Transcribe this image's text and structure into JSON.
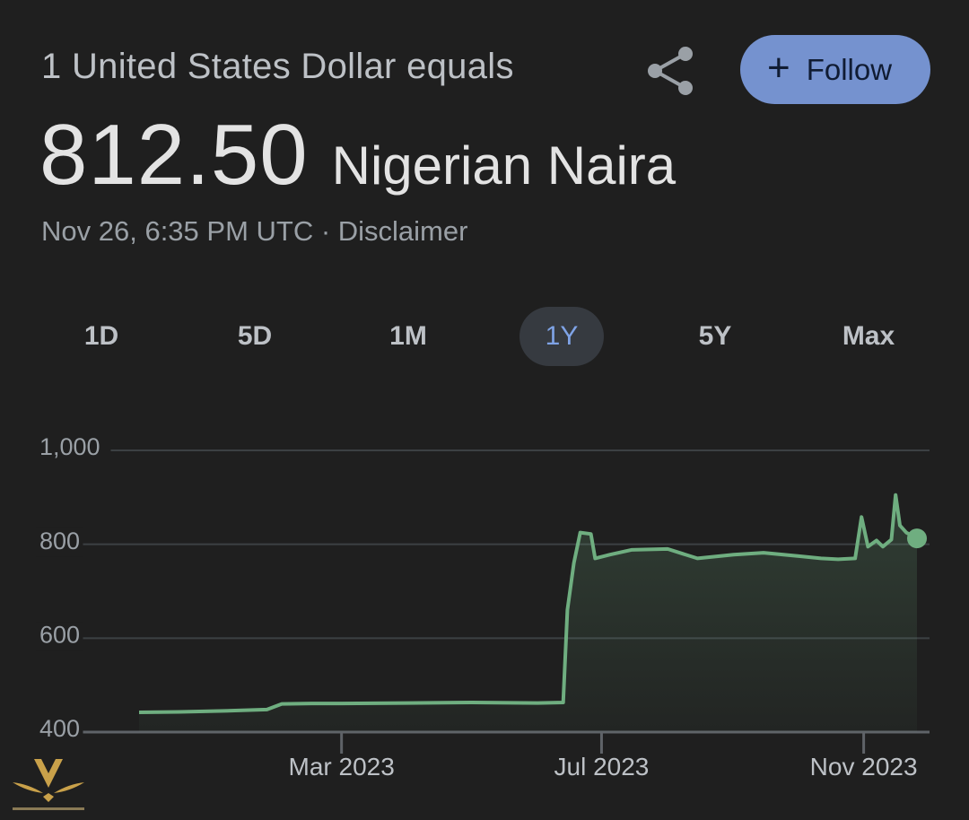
{
  "header": {
    "subtitle": "1 United States Dollar equals",
    "follow_label": "Follow",
    "share_icon": "share-icon",
    "plus_icon": "plus-icon"
  },
  "quote": {
    "value": "812.50",
    "currency": "Nigerian Naira",
    "timestamp": "Nov 26, 6:35 PM UTC · Disclaimer"
  },
  "tabs": [
    {
      "label": "1D",
      "active": false
    },
    {
      "label": "5D",
      "active": false
    },
    {
      "label": "1M",
      "active": false
    },
    {
      "label": "1Y",
      "active": true
    },
    {
      "label": "5Y",
      "active": false
    },
    {
      "label": "Max",
      "active": false
    }
  ],
  "colors": {
    "line": "#6fae80",
    "active_tab": "#7fa3e6",
    "follow_bg": "#7592cf"
  },
  "chart_data": {
    "type": "area",
    "xlabel": "",
    "ylabel": "",
    "ylim": [
      400,
      1000
    ],
    "xlim": [
      "2022-11-26",
      "2023-11-26"
    ],
    "y_ticks": [
      {
        "value": 1000,
        "label": "1,000"
      },
      {
        "value": 800,
        "label": "800"
      },
      {
        "value": 600,
        "label": "600"
      },
      {
        "value": 400,
        "label": "400"
      }
    ],
    "x_ticks": [
      {
        "date": "2023-03-01",
        "label": "Mar 2023"
      },
      {
        "date": "2023-07-01",
        "label": "Jul 2023"
      },
      {
        "date": "2023-11-01",
        "label": "Nov 2023"
      }
    ],
    "grid": true,
    "series": [
      {
        "points": [
          [
            "2022-11-26",
            442
          ],
          [
            "2022-12-15",
            443
          ],
          [
            "2023-01-05",
            445
          ],
          [
            "2023-01-25",
            448
          ],
          [
            "2023-02-01",
            460
          ],
          [
            "2023-02-15",
            461
          ],
          [
            "2023-03-01",
            461
          ],
          [
            "2023-04-01",
            462
          ],
          [
            "2023-05-01",
            463
          ],
          [
            "2023-06-01",
            462
          ],
          [
            "2023-06-13",
            463
          ],
          [
            "2023-06-15",
            660
          ],
          [
            "2023-06-18",
            760
          ],
          [
            "2023-06-21",
            825
          ],
          [
            "2023-06-26",
            822
          ],
          [
            "2023-06-28",
            770
          ],
          [
            "2023-07-05",
            778
          ],
          [
            "2023-07-15",
            788
          ],
          [
            "2023-08-01",
            790
          ],
          [
            "2023-08-15",
            770
          ],
          [
            "2023-09-01",
            778
          ],
          [
            "2023-09-15",
            782
          ],
          [
            "2023-10-01",
            775
          ],
          [
            "2023-10-12",
            770
          ],
          [
            "2023-10-20",
            768
          ],
          [
            "2023-10-28",
            770
          ],
          [
            "2023-10-31",
            858
          ],
          [
            "2023-11-03",
            795
          ],
          [
            "2023-11-07",
            808
          ],
          [
            "2023-11-10",
            795
          ],
          [
            "2023-11-14",
            810
          ],
          [
            "2023-11-16",
            905
          ],
          [
            "2023-11-18",
            840
          ],
          [
            "2023-11-21",
            825
          ],
          [
            "2023-11-26",
            812.5
          ]
        ]
      }
    ]
  }
}
